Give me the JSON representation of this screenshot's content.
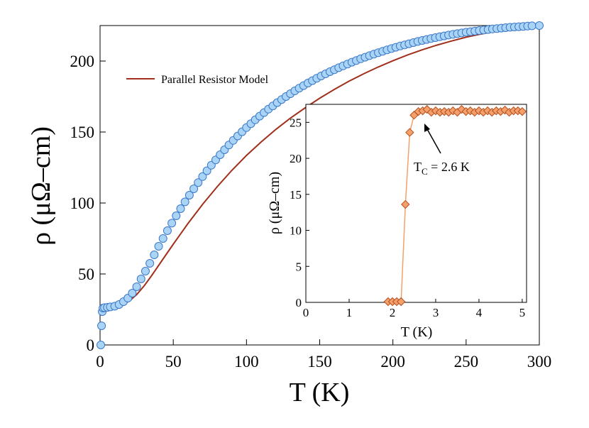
{
  "chart_data": [
    {
      "type": "scatter",
      "xlabel": "T (K)",
      "ylabel": "ρ (μΩ–cm)",
      "xlim": [
        0,
        300
      ],
      "ylim": [
        0,
        225
      ],
      "xticks": [
        "0",
        "50",
        "100",
        "150",
        "200",
        "250",
        "300"
      ],
      "yticks": [
        "0",
        "50",
        "100",
        "150",
        "200"
      ],
      "grid": false,
      "legend_position": "top-left",
      "colors": {
        "marker_fill": "#a9d4f5",
        "marker_stroke": "#3c78c8",
        "fit_line": "#a0301c"
      },
      "series": [
        {
          "name": "",
          "kind": "points",
          "x": [
            0.5,
            1.0,
            1.5,
            2.0,
            3.0,
            5.0,
            7.0,
            10,
            13,
            16,
            19,
            22,
            25,
            28,
            31,
            34,
            37,
            40,
            43,
            46,
            49,
            52,
            55,
            58,
            61,
            64,
            67,
            70,
            73,
            76,
            79,
            82,
            85,
            88,
            91,
            94,
            97,
            100,
            103,
            106,
            109,
            112,
            115,
            118,
            121,
            124,
            127,
            130,
            133,
            136,
            139,
            142,
            145,
            148,
            151,
            154,
            157,
            160,
            163,
            166,
            169,
            172,
            175,
            178,
            181,
            184,
            187,
            190,
            193,
            196,
            199,
            202,
            205,
            208,
            211,
            214,
            217,
            220,
            223,
            226,
            229,
            232,
            235,
            238,
            241,
            244,
            247,
            250,
            253,
            256,
            259,
            262,
            265,
            268,
            271,
            274,
            277,
            280,
            283,
            286,
            289,
            292,
            295,
            300
          ],
          "y": [
            0,
            13.5,
            23.5,
            26.0,
            26.3,
            26.5,
            26.8,
            27.3,
            28.5,
            30.5,
            33.0,
            36.5,
            41.0,
            46.5,
            52.0,
            57.5,
            63.5,
            69.5,
            75.0,
            80.5,
            85.8,
            91.0,
            96.0,
            100.8,
            105.5,
            110.0,
            114.4,
            118.6,
            122.7,
            126.6,
            130.4,
            134.0,
            137.5,
            140.9,
            144.1,
            147.2,
            150.2,
            153.1,
            155.9,
            158.6,
            161.2,
            163.7,
            166.1,
            168.4,
            170.7,
            172.9,
            175.0,
            177.0,
            179.0,
            180.9,
            182.7,
            184.5,
            186.2,
            187.9,
            189.5,
            191.0,
            192.5,
            193.9,
            195.3,
            196.6,
            197.9,
            199.2,
            200.4,
            201.6,
            202.7,
            203.8,
            204.9,
            205.9,
            206.9,
            207.9,
            208.8,
            209.7,
            210.6,
            211.4,
            212.2,
            213.0,
            213.8,
            214.5,
            215.2,
            215.9,
            216.5,
            217.1,
            217.7,
            218.3,
            218.8,
            219.3,
            219.8,
            220.3,
            220.7,
            221.1,
            221.5,
            221.9,
            222.2,
            222.6,
            222.9,
            223.2,
            223.5,
            223.8,
            224.0,
            224.2,
            224.4,
            224.6,
            224.8,
            225.0
          ]
        },
        {
          "name": "Parallel Resistor Model",
          "kind": "line",
          "x": [
            2,
            5,
            10,
            15,
            20,
            25,
            30,
            35,
            40,
            45,
            50,
            60,
            70,
            80,
            90,
            100,
            110,
            120,
            130,
            140,
            150,
            160,
            170,
            180,
            190,
            200,
            210,
            220,
            230,
            240,
            250,
            260,
            270,
            280,
            290,
            300
          ],
          "y": [
            26.0,
            26.2,
            26.8,
            28.2,
            31.0,
            35.5,
            41.5,
            48.5,
            56.0,
            63.5,
            71.0,
            85.5,
            99.0,
            111.5,
            123.0,
            133.5,
            143.0,
            151.8,
            159.8,
            167.0,
            173.8,
            180.0,
            185.8,
            191.0,
            195.8,
            200.2,
            204.3,
            207.9,
            211.2,
            214.1,
            216.8,
            219.0,
            221.0,
            222.6,
            224.0,
            225.2
          ]
        }
      ]
    },
    {
      "type": "line",
      "xlabel": "T (K)",
      "ylabel": "ρ (μΩ–cm)",
      "xlim": [
        0,
        5.1
      ],
      "ylim": [
        0,
        27.5
      ],
      "xticks": [
        "0",
        "1",
        "2",
        "3",
        "4",
        "5"
      ],
      "yticks": [
        "0",
        "5",
        "10",
        "15",
        "20",
        "25"
      ],
      "grid": false,
      "colors": {
        "marker_fill": "#f4a06c",
        "marker_stroke": "#b5501e",
        "line": "#f4a06c"
      },
      "annotation": {
        "text_main": "T",
        "text_sub": "C",
        "text_rest": " = 2.6 K",
        "points_to_x": 2.6
      },
      "series": [
        {
          "name": "",
          "x": [
            1.9,
            2.0,
            2.1,
            2.2,
            2.3,
            2.4,
            2.5,
            2.6,
            2.7,
            2.8,
            2.9,
            3.0,
            3.1,
            3.2,
            3.3,
            3.4,
            3.5,
            3.6,
            3.7,
            3.8,
            3.9,
            4.0,
            4.1,
            4.2,
            4.3,
            4.4,
            4.5,
            4.6,
            4.7,
            4.8,
            4.9,
            5.0
          ],
          "y": [
            0.1,
            0.1,
            0.1,
            0.1,
            13.6,
            23.6,
            26.0,
            26.5,
            26.6,
            26.8,
            26.4,
            26.6,
            26.4,
            26.5,
            26.4,
            26.6,
            26.4,
            26.8,
            26.5,
            26.6,
            26.4,
            26.6,
            26.4,
            26.6,
            26.4,
            26.6,
            26.5,
            26.7,
            26.4,
            26.6,
            26.6,
            26.5
          ]
        }
      ]
    }
  ]
}
